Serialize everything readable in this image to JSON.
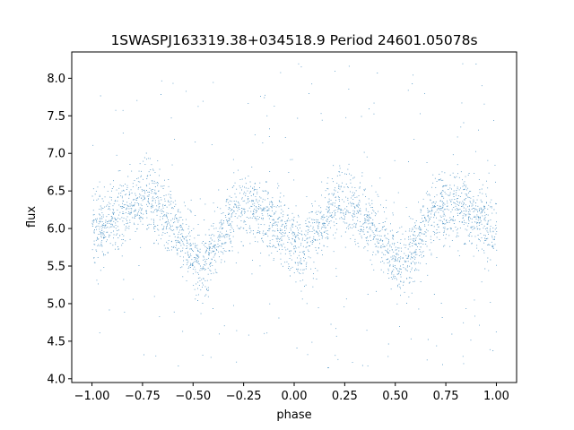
{
  "chart_data": {
    "type": "scatter",
    "title": "1SWASPJ163319.38+034518.9 Period 24601.05078s",
    "xlabel": "phase",
    "ylabel": "flux",
    "xlim": [
      -1.1,
      1.1
    ],
    "ylim": [
      3.95,
      8.35
    ],
    "x_ticks": [
      -1.0,
      -0.75,
      -0.5,
      -0.25,
      0.0,
      0.25,
      0.5,
      0.75,
      1.0
    ],
    "x_tick_labels": [
      "−1.00",
      "−0.75",
      "−0.50",
      "−0.25",
      "0.00",
      "0.25",
      "0.50",
      "0.75",
      "1.00"
    ],
    "y_ticks": [
      4.0,
      4.5,
      5.0,
      5.5,
      6.0,
      6.5,
      7.0,
      7.5,
      8.0
    ],
    "y_tick_labels": [
      "4.0",
      "4.5",
      "5.0",
      "5.5",
      "6.0",
      "6.5",
      "7.0",
      "7.5",
      "8.0"
    ],
    "grid": false,
    "legend": "none",
    "marker_color": "#1f77b4",
    "series": [
      {
        "phase": [
          -1.0,
          -0.9,
          -0.8,
          -0.75,
          -0.7,
          -0.6,
          -0.5,
          -0.46,
          -0.4,
          -0.3,
          -0.25,
          -0.2,
          -0.1,
          0.0,
          0.04,
          0.1,
          0.2,
          0.25,
          0.3,
          0.4,
          0.5,
          0.54,
          0.6,
          0.7,
          0.75,
          0.8,
          0.9,
          1.0
        ],
        "flux": [
          5.9,
          6.15,
          6.35,
          6.4,
          6.35,
          6.05,
          5.6,
          5.45,
          5.75,
          6.2,
          6.3,
          6.3,
          6.1,
          5.8,
          5.7,
          5.95,
          6.3,
          6.35,
          6.3,
          6.0,
          5.55,
          5.45,
          5.8,
          6.25,
          6.3,
          6.3,
          6.15,
          5.9
        ],
        "scatter_sd": 0.22,
        "outlier_range": [
          4.1,
          8.2
        ],
        "approx_point_count": 40000
      }
    ]
  }
}
